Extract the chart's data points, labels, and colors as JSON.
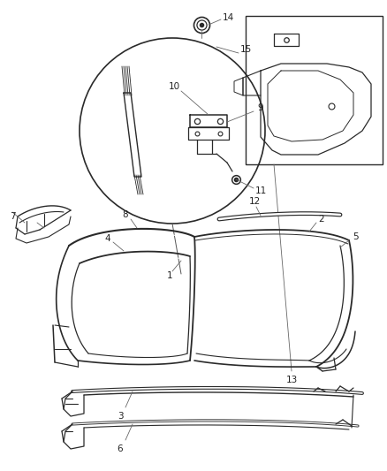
{
  "background_color": "#ffffff",
  "line_color": "#2a2a2a",
  "fig_width": 4.38,
  "fig_height": 5.33,
  "dpi": 100,
  "label_fontsize": 7.5,
  "label_color": "#222222",
  "leader_color": "#666666"
}
